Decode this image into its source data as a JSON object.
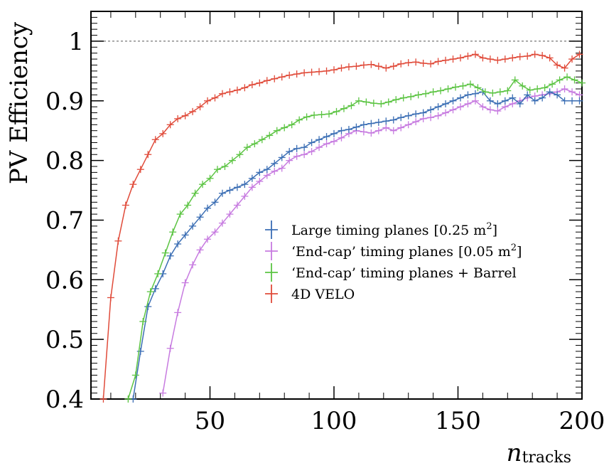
{
  "chart_data": {
    "type": "line",
    "xlabel": "n",
    "xlabel_sub": "tracks",
    "ylabel": "PV Efficiency",
    "xlim": [
      2,
      200
    ],
    "ylim": [
      0.4,
      1.05
    ],
    "xticks": [
      50,
      100,
      150,
      200
    ],
    "xtick_labels": [
      "50",
      "100",
      "150",
      "200"
    ],
    "yticks": [
      0.4,
      0.5,
      0.6,
      0.7,
      0.8,
      0.9,
      1.0
    ],
    "ytick_labels": [
      "0.4",
      "0.5",
      "0.6",
      "0.7",
      "0.8",
      "0.9",
      "1"
    ],
    "reference_line": 1.0,
    "grid": false,
    "legend_position": "center-right",
    "error_bars": true,
    "series": [
      {
        "name": "Large timing planes",
        "name_suffix": "[0.25 m",
        "name_sup": "2",
        "name_close": "]",
        "color": "#3b6eb4",
        "x": [
          19,
          22,
          25,
          28,
          31,
          34,
          37,
          40,
          43,
          46,
          49,
          52,
          55,
          58,
          61,
          64,
          67,
          70,
          73,
          76,
          79,
          82,
          85,
          88,
          91,
          94,
          97,
          100,
          103,
          106,
          109,
          112,
          115,
          118,
          121,
          124,
          127,
          130,
          133,
          136,
          139,
          142,
          145,
          148,
          151,
          154,
          157,
          160,
          163,
          166,
          169,
          172,
          175,
          178,
          181,
          184,
          187,
          190,
          193,
          196,
          199
        ],
        "y": [
          0.4,
          0.48,
          0.555,
          0.585,
          0.61,
          0.64,
          0.66,
          0.675,
          0.69,
          0.705,
          0.72,
          0.73,
          0.745,
          0.75,
          0.755,
          0.76,
          0.77,
          0.78,
          0.785,
          0.795,
          0.805,
          0.815,
          0.82,
          0.822,
          0.83,
          0.835,
          0.84,
          0.845,
          0.85,
          0.852,
          0.856,
          0.86,
          0.862,
          0.864,
          0.866,
          0.868,
          0.872,
          0.875,
          0.878,
          0.88,
          0.885,
          0.89,
          0.895,
          0.9,
          0.905,
          0.91,
          0.912,
          0.915,
          0.9,
          0.895,
          0.9,
          0.905,
          0.895,
          0.91,
          0.9,
          0.905,
          0.915,
          0.91,
          0.9,
          0.9,
          0.9
        ]
      },
      {
        "name": "‘End-cap’ timing planes",
        "name_suffix": "[0.05 m",
        "name_sup": "2",
        "name_close": "]",
        "color": "#c77be0",
        "x": [
          31,
          34,
          37,
          40,
          43,
          46,
          49,
          52,
          55,
          58,
          61,
          64,
          67,
          70,
          73,
          76,
          79,
          82,
          85,
          88,
          91,
          94,
          97,
          100,
          103,
          106,
          109,
          112,
          115,
          118,
          121,
          124,
          127,
          130,
          133,
          136,
          139,
          142,
          145,
          148,
          151,
          154,
          157,
          160,
          163,
          166,
          169,
          172,
          175,
          178,
          181,
          184,
          187,
          190,
          193,
          196,
          199
        ],
        "y": [
          0.41,
          0.485,
          0.545,
          0.595,
          0.625,
          0.65,
          0.668,
          0.68,
          0.695,
          0.71,
          0.725,
          0.74,
          0.755,
          0.765,
          0.775,
          0.782,
          0.787,
          0.8,
          0.807,
          0.81,
          0.815,
          0.822,
          0.828,
          0.832,
          0.838,
          0.845,
          0.85,
          0.848,
          0.846,
          0.85,
          0.855,
          0.85,
          0.855,
          0.86,
          0.865,
          0.87,
          0.872,
          0.875,
          0.88,
          0.885,
          0.89,
          0.895,
          0.9,
          0.89,
          0.885,
          0.883,
          0.89,
          0.895,
          0.9,
          0.905,
          0.908,
          0.91,
          0.912,
          0.915,
          0.92,
          0.915,
          0.91
        ]
      },
      {
        "name": "‘End-cap’ timing planes + Barrel",
        "color": "#5cc443",
        "x": [
          17,
          20,
          23,
          26,
          29,
          32,
          35,
          38,
          41,
          44,
          47,
          50,
          53,
          56,
          59,
          62,
          65,
          68,
          71,
          74,
          77,
          80,
          83,
          86,
          89,
          92,
          95,
          98,
          101,
          104,
          107,
          110,
          113,
          116,
          119,
          122,
          125,
          128,
          131,
          134,
          137,
          140,
          143,
          146,
          149,
          152,
          155,
          158,
          161,
          164,
          167,
          170,
          173,
          176,
          179,
          182,
          185,
          188,
          191,
          194,
          197,
          200
        ],
        "y": [
          0.4,
          0.44,
          0.53,
          0.58,
          0.61,
          0.645,
          0.68,
          0.71,
          0.725,
          0.745,
          0.76,
          0.77,
          0.785,
          0.79,
          0.8,
          0.81,
          0.822,
          0.828,
          0.835,
          0.842,
          0.85,
          0.855,
          0.86,
          0.868,
          0.873,
          0.876,
          0.877,
          0.878,
          0.882,
          0.887,
          0.892,
          0.9,
          0.898,
          0.896,
          0.895,
          0.898,
          0.902,
          0.905,
          0.907,
          0.91,
          0.912,
          0.915,
          0.917,
          0.92,
          0.923,
          0.925,
          0.928,
          0.922,
          0.915,
          0.913,
          0.915,
          0.917,
          0.935,
          0.925,
          0.918,
          0.92,
          0.922,
          0.928,
          0.935,
          0.94,
          0.935,
          0.93
        ]
      },
      {
        "name": "4D VELO",
        "color": "#e04b3a",
        "x": [
          7,
          10,
          13,
          16,
          19,
          22,
          25,
          28,
          31,
          34,
          37,
          40,
          43,
          46,
          49,
          52,
          55,
          58,
          61,
          64,
          67,
          70,
          73,
          76,
          79,
          82,
          85,
          88,
          91,
          94,
          97,
          100,
          103,
          106,
          109,
          112,
          115,
          118,
          121,
          124,
          127,
          130,
          133,
          136,
          139,
          142,
          145,
          148,
          151,
          154,
          157,
          160,
          163,
          166,
          169,
          172,
          175,
          178,
          181,
          184,
          187,
          190,
          193,
          196,
          199
        ],
        "y": [
          0.4,
          0.57,
          0.665,
          0.725,
          0.76,
          0.785,
          0.81,
          0.835,
          0.845,
          0.86,
          0.87,
          0.875,
          0.882,
          0.89,
          0.9,
          0.905,
          0.912,
          0.915,
          0.918,
          0.922,
          0.927,
          0.93,
          0.934,
          0.937,
          0.94,
          0.943,
          0.945,
          0.947,
          0.948,
          0.949,
          0.95,
          0.952,
          0.955,
          0.957,
          0.958,
          0.96,
          0.961,
          0.958,
          0.955,
          0.958,
          0.962,
          0.964,
          0.965,
          0.963,
          0.962,
          0.966,
          0.968,
          0.97,
          0.972,
          0.975,
          0.978,
          0.972,
          0.97,
          0.968,
          0.97,
          0.972,
          0.974,
          0.975,
          0.978,
          0.976,
          0.972,
          0.96,
          0.955,
          0.97,
          0.978
        ]
      }
    ]
  }
}
